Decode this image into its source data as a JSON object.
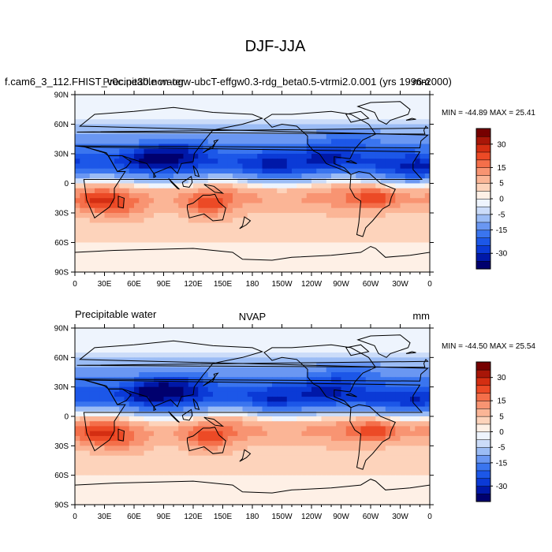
{
  "figure_title": "DJF-JJA",
  "colors": {
    "levels": [
      -35,
      -30,
      -25,
      -20,
      -15,
      -10,
      -5,
      -2.5,
      0,
      2.5,
      5,
      10,
      15,
      20,
      25,
      30,
      35
    ],
    "fill": [
      "#00006e",
      "#0018a8",
      "#0b3ad6",
      "#1c57e8",
      "#3a75ef",
      "#6a97f2",
      "#9bbcf5",
      "#cbdcf9",
      "#eef4fd",
      "#fef0e6",
      "#fdd3bb",
      "#fbb596",
      "#f89472",
      "#f46f4a",
      "#ec4a26",
      "#d42e12",
      "#a81608",
      "#760000"
    ],
    "ocean": "#f4f4f4",
    "coast": "#000000"
  },
  "panels": [
    {
      "left_title": "f.cam6_3_112.FHIST_v0c.ne30.non-ogw-ubcT-effgw0.3-rdg_beta0.5-vtrmi2.0.001 (yrs 1996-2000)",
      "center_title": "Precipitable water",
      "right_title": "mm",
      "stats": "MIN = -44.89 MAX =  25.41",
      "variant": 0
    },
    {
      "left_title": "Precipitable water",
      "center_title": "NVAP",
      "right_title": "mm",
      "stats": "MIN = -44.50 MAX =  25.54",
      "variant": 1
    }
  ],
  "chart_data": {
    "type": "heatmap",
    "title": "DJF-JJA",
    "variable": "Precipitable water",
    "units": "mm",
    "x_axis": {
      "range": [
        0,
        360
      ],
      "tick_labels": [
        "0",
        "30E",
        "60E",
        "90E",
        "120E",
        "150E",
        "180",
        "150W",
        "120W",
        "90W",
        "60W",
        "30W",
        "0"
      ]
    },
    "y_axis": {
      "range": [
        -90,
        90
      ],
      "tick_labels": [
        "90S",
        "60S",
        "30S",
        "0",
        "30N",
        "60N",
        "90N"
      ]
    },
    "colorbar": {
      "tick_values": [
        30,
        15,
        5,
        0,
        -5,
        -15,
        -30
      ],
      "tick_labels": [
        "30",
        "15",
        "5",
        "0",
        "-5",
        "-15",
        "-30"
      ]
    },
    "series": [
      {
        "name": "f.cam6_3_112.FHIST_v0c.ne30.non-ogw-ubcT-effgw0.3-rdg_beta0.5-vtrmi2.0.001 (yrs 1996-2000)",
        "min": -44.89,
        "max": 25.41
      },
      {
        "name": "NVAP",
        "min": -44.5,
        "max": 25.54
      }
    ]
  }
}
